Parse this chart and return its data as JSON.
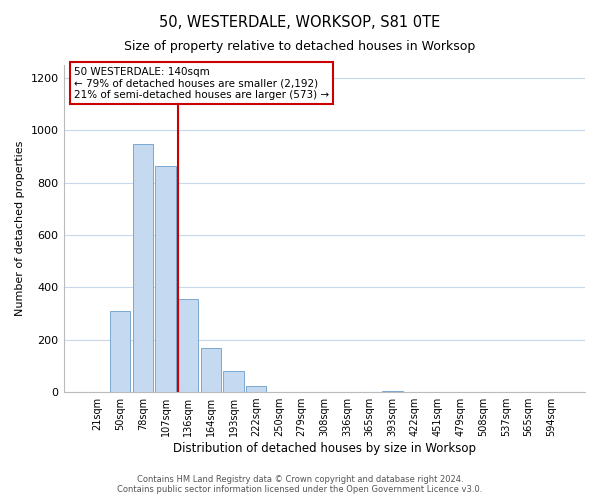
{
  "title": "50, WESTERDALE, WORKSOP, S81 0TE",
  "subtitle": "Size of property relative to detached houses in Worksop",
  "xlabel": "Distribution of detached houses by size in Worksop",
  "ylabel": "Number of detached properties",
  "bar_labels": [
    "21sqm",
    "50sqm",
    "78sqm",
    "107sqm",
    "136sqm",
    "164sqm",
    "193sqm",
    "222sqm",
    "250sqm",
    "279sqm",
    "308sqm",
    "336sqm",
    "365sqm",
    "393sqm",
    "422sqm",
    "451sqm",
    "479sqm",
    "508sqm",
    "537sqm",
    "565sqm",
    "594sqm"
  ],
  "bar_values": [
    0,
    308,
    950,
    865,
    355,
    170,
    82,
    22,
    2,
    0,
    0,
    0,
    0,
    5,
    0,
    0,
    0,
    0,
    0,
    0,
    0
  ],
  "bar_color": "#c5d9f1",
  "bar_edge_color": "#7ba7d0",
  "highlight_bar_index": 4,
  "highlight_line_color": "#cc0000",
  "annotation_text_line1": "50 WESTERDALE: 140sqm",
  "annotation_text_line2": "← 79% of detached houses are smaller (2,192)",
  "annotation_text_line3": "21% of semi-detached houses are larger (573) →",
  "ylim": [
    0,
    1250
  ],
  "yticks": [
    0,
    200,
    400,
    600,
    800,
    1000,
    1200
  ],
  "footer_line1": "Contains HM Land Registry data © Crown copyright and database right 2024.",
  "footer_line2": "Contains public sector information licensed under the Open Government Licence v3.0.",
  "background_color": "#ffffff",
  "grid_color": "#c8d8ec"
}
